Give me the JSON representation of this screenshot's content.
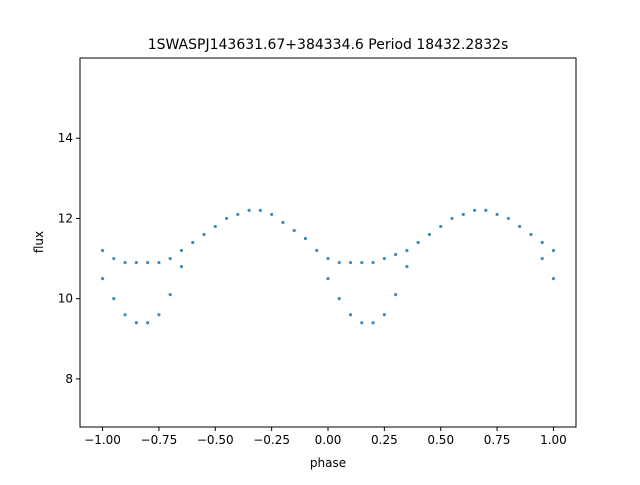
{
  "chart_data": {
    "type": "scatter",
    "title": "1SWASPJ143631.67+384334.6 Period 18432.2832s",
    "xlabel": "phase",
    "ylabel": "flux",
    "xlim": [
      -1.1,
      1.1
    ],
    "ylim": [
      6.8,
      16.0
    ],
    "grid": false,
    "xticks": [
      {
        "value": -1.0,
        "label": "−1.00"
      },
      {
        "value": -0.75,
        "label": "−0.75"
      },
      {
        "value": -0.5,
        "label": "−0.50"
      },
      {
        "value": -0.25,
        "label": "−0.25"
      },
      {
        "value": 0.0,
        "label": "0.00"
      },
      {
        "value": 0.25,
        "label": "0.25"
      },
      {
        "value": 0.5,
        "label": "0.50"
      },
      {
        "value": 0.75,
        "label": "0.75"
      },
      {
        "value": 1.0,
        "label": "1.00"
      }
    ],
    "yticks": [
      {
        "value": 8,
        "label": "8"
      },
      {
        "value": 10,
        "label": "10"
      },
      {
        "value": 12,
        "label": "12"
      },
      {
        "value": 14,
        "label": "14"
      }
    ],
    "series": [
      {
        "color": "#1f77b4",
        "x": [
          -1.0,
          -0.95,
          -0.9,
          -0.85,
          -0.8,
          -0.75,
          -0.7,
          -0.65,
          -0.6,
          -0.55,
          -0.5,
          -0.45,
          -0.4,
          -0.35,
          -0.3,
          -0.25,
          -0.2,
          -0.15,
          -0.1,
          -0.05,
          0.0,
          0.05,
          0.1,
          0.15,
          0.2,
          0.25,
          0.3,
          0.35,
          0.4,
          0.45,
          0.5,
          0.55,
          0.6,
          0.65,
          0.7,
          0.75,
          0.8,
          0.85,
          0.9,
          0.95,
          1.0
        ],
        "y": [
          11.2,
          11.0,
          10.9,
          10.9,
          10.9,
          10.9,
          11.0,
          11.2,
          11.4,
          11.6,
          11.8,
          12.0,
          12.1,
          12.2,
          12.2,
          12.1,
          11.9,
          11.7,
          11.5,
          11.2,
          11.0,
          10.9,
          10.9,
          10.9,
          10.9,
          11.0,
          11.1,
          11.2,
          11.4,
          11.6,
          11.8,
          12.0,
          12.1,
          12.2,
          12.2,
          12.1,
          12.0,
          11.8,
          11.6,
          11.4,
          11.2
        ]
      },
      {
        "color": "#1f77b4",
        "x": [
          -1.0,
          -0.95,
          -0.9,
          -0.85,
          -0.8,
          -0.75,
          -0.7,
          -0.65,
          0.0,
          0.05,
          0.1,
          0.15,
          0.2,
          0.25,
          0.3,
          0.35,
          0.95,
          1.0
        ],
        "y": [
          10.5,
          10.0,
          9.6,
          9.4,
          9.4,
          9.6,
          10.1,
          10.8,
          10.5,
          10.0,
          9.6,
          9.4,
          9.4,
          9.6,
          10.1,
          10.8,
          11.0,
          10.5
        ]
      }
    ]
  }
}
